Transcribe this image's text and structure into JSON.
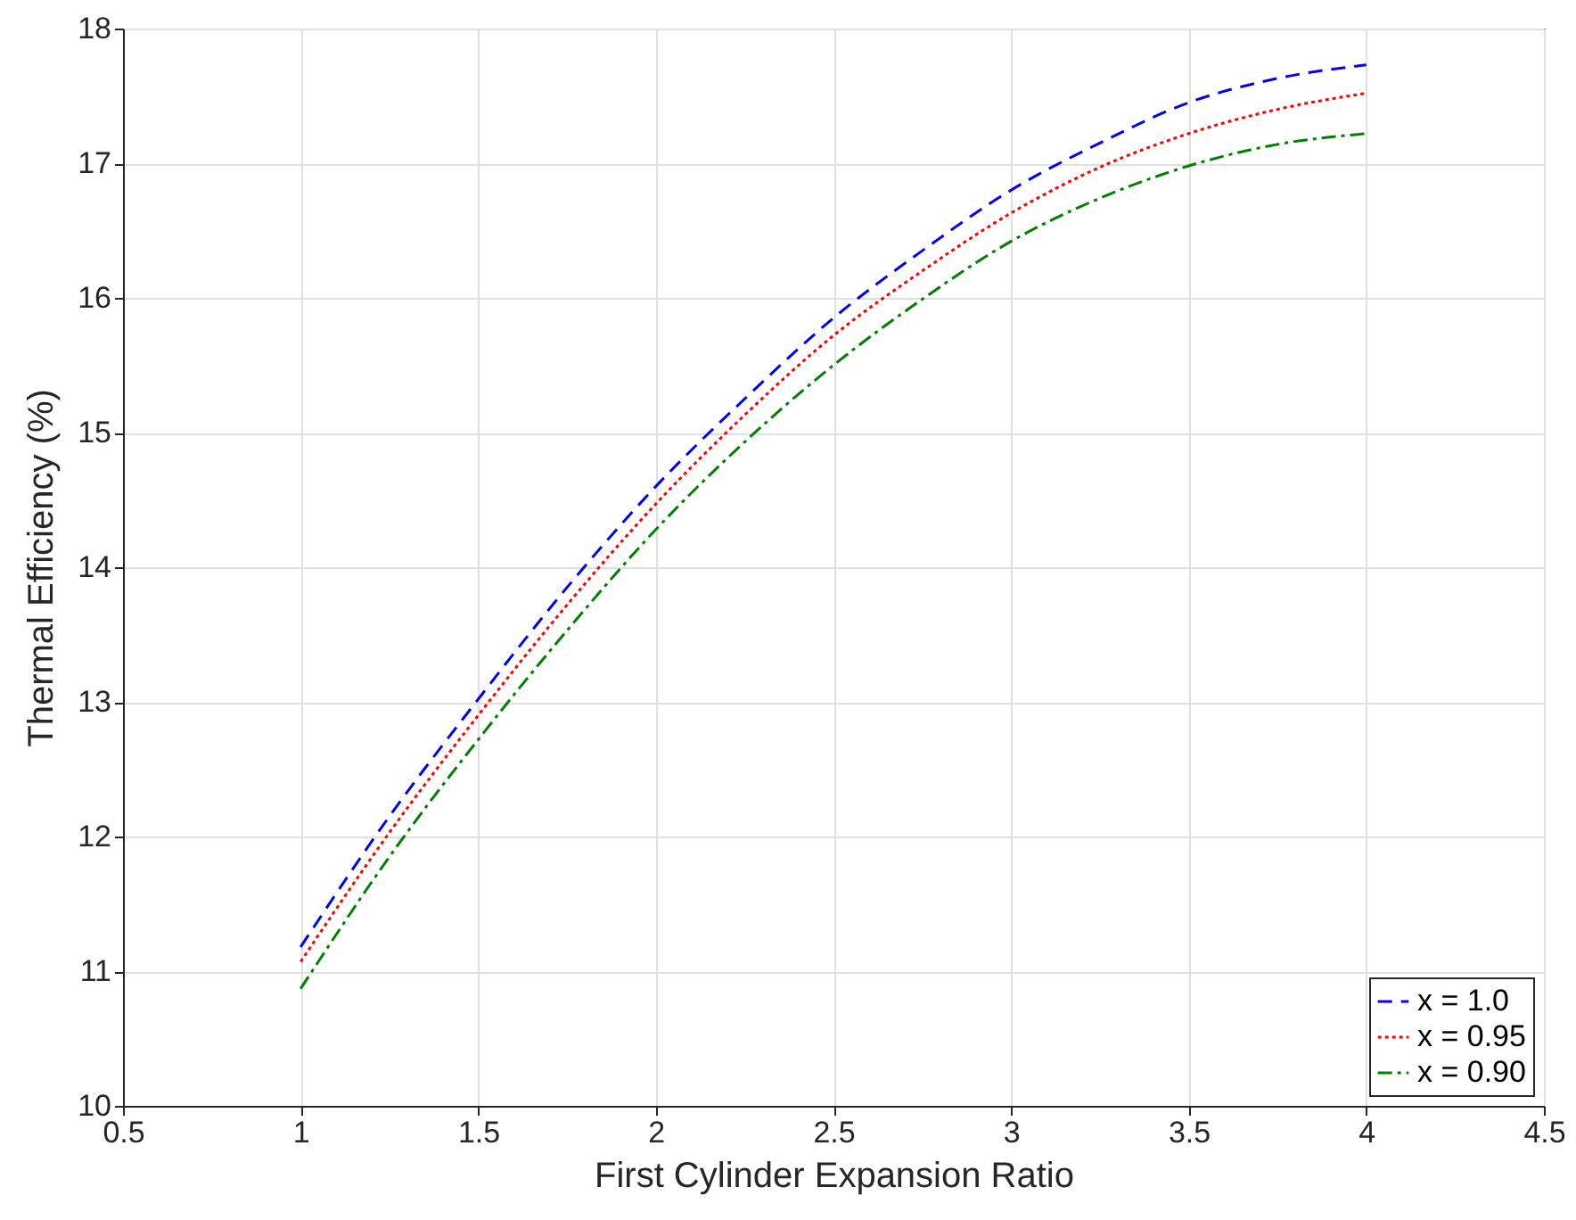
{
  "chart_data": {
    "type": "line",
    "xlabel": "First Cylinder Expansion Ratio",
    "ylabel": "Thermal Efficiency (%)",
    "x": [
      1,
      1.25,
      1.5,
      1.75,
      2,
      2.25,
      2.5,
      2.75,
      3,
      3.25,
      3.5,
      3.75,
      4
    ],
    "series": [
      {
        "name": "x = 1.0",
        "color": "#0000ff",
        "line_style": "dashed",
        "values": [
          11.18,
          12.15,
          13.02,
          13.85,
          14.6,
          15.25,
          15.85,
          16.35,
          16.8,
          17.15,
          17.45,
          17.63,
          17.73
        ]
      },
      {
        "name": "x = 0.95",
        "color": "#ff0000",
        "line_style": "dotted",
        "values": [
          11.07,
          12.03,
          12.9,
          13.72,
          14.47,
          15.13,
          15.72,
          16.2,
          16.63,
          16.97,
          17.22,
          17.4,
          17.52
        ]
      },
      {
        "name": "x = 0.90",
        "color": "#008000",
        "line_style": "dashdot",
        "values": [
          10.87,
          11.85,
          12.72,
          13.53,
          14.28,
          14.93,
          15.5,
          15.99,
          16.42,
          16.74,
          16.98,
          17.14,
          17.22
        ]
      }
    ],
    "xlim": [
      0.5,
      4.5
    ],
    "xticks": [
      0.5,
      1,
      1.5,
      2,
      2.5,
      3,
      3.5,
      4,
      4.5
    ],
    "ylim": [
      10,
      18
    ],
    "yticks": [
      10,
      11,
      12,
      13,
      14,
      15,
      16,
      17,
      18
    ],
    "grid": true,
    "legend": "bottom right"
  }
}
